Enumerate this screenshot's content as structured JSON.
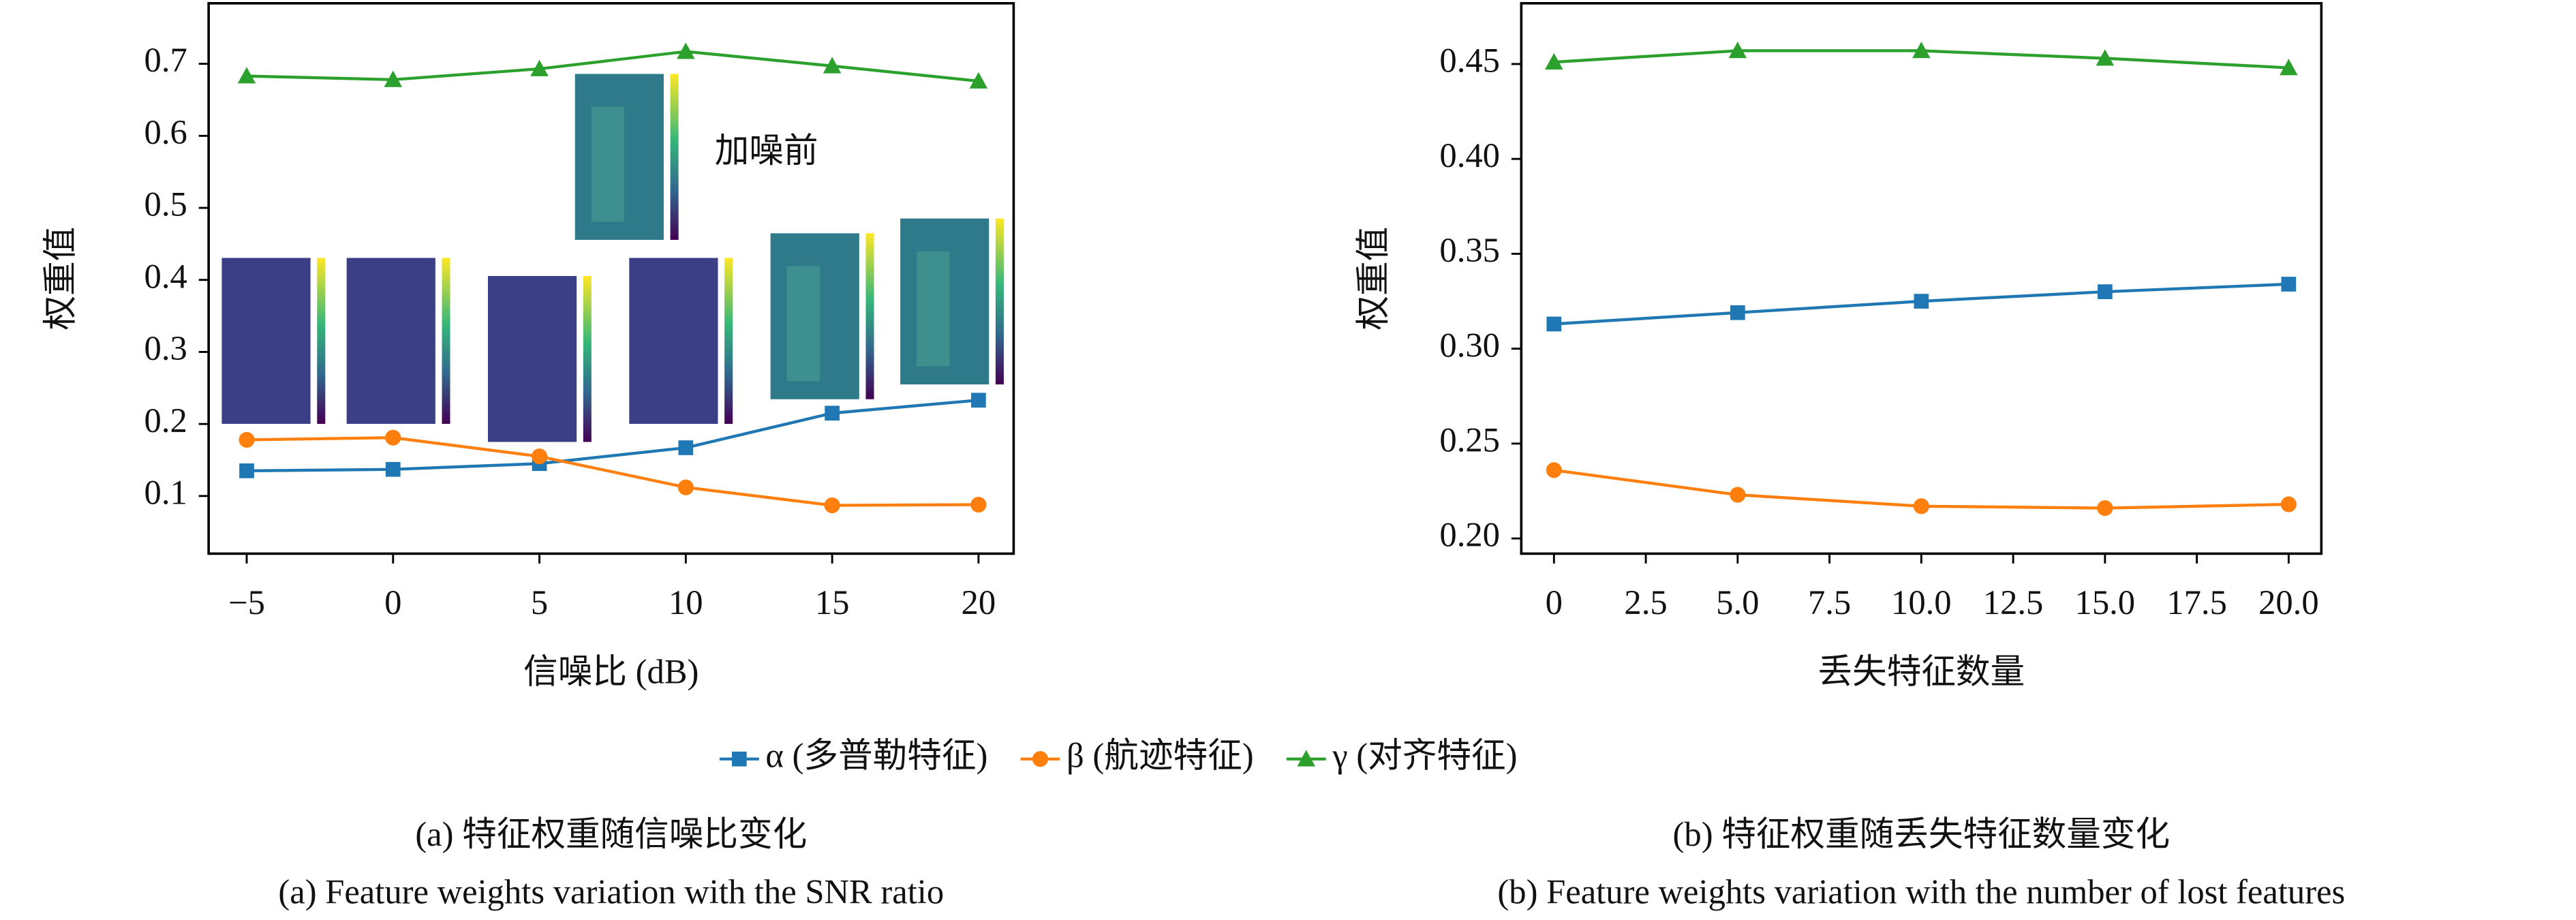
{
  "chart_data": [
    {
      "type": "line",
      "annotation": "加噪前",
      "x_label": "信噪比 (dB)",
      "y_label": "权重值",
      "caption": "(a) 特征权重随信噪比变化",
      "caption_en": "(a) Feature weights variation with the SNR ratio",
      "x": [
        -5,
        0,
        5,
        10,
        15,
        20
      ],
      "xlim": [
        -6.3,
        21.2
      ],
      "xticks": [
        -5,
        0,
        5,
        10,
        15,
        20
      ],
      "ylim": [
        0.02,
        0.784
      ],
      "yticks": [
        0.1,
        0.2,
        0.3,
        0.4,
        0.5,
        0.6,
        0.7
      ],
      "series": [
        {
          "name": "α (多普勒特征)",
          "color": "#1f77b4",
          "marker": "square",
          "values": [
            0.135,
            0.137,
            0.145,
            0.167,
            0.215,
            0.233
          ]
        },
        {
          "name": "β (航迹特征)",
          "color": "#ff7f0e",
          "marker": "circle",
          "values": [
            0.178,
            0.181,
            0.155,
            0.112,
            0.087,
            0.088
          ]
        },
        {
          "name": "γ (对齐特征)",
          "color": "#2ca02c",
          "marker": "triangle",
          "values": [
            0.683,
            0.678,
            0.693,
            0.717,
            0.697,
            0.676
          ]
        }
      ]
    },
    {
      "type": "line",
      "x_label": "丢失特征数量",
      "y_label": "权重值",
      "caption": "(b) 特征权重随丢失特征数量变化",
      "caption_en": "(b) Feature weights variation with the number of lost features",
      "x": [
        0,
        5,
        10,
        15,
        20
      ],
      "xlim": [
        -0.89,
        20.89
      ],
      "xticks": [
        0,
        2.5,
        {
          "value": 5,
          "label": "5.0"
        },
        7.5,
        {
          "value": 10,
          "label": "10.0"
        },
        12.5,
        {
          "value": 15,
          "label": "15.0"
        },
        17.5,
        {
          "value": 20,
          "label": "20.0"
        }
      ],
      "ylim": [
        0.192,
        0.482
      ],
      "yticks": [
        {
          "value": 0.2,
          "label": "0.20"
        },
        0.25,
        {
          "value": 0.3,
          "label": "0.30"
        },
        0.35,
        {
          "value": 0.4,
          "label": "0.40"
        },
        0.45
      ],
      "series": [
        {
          "color": "#1f77b4",
          "marker": "square",
          "values": [
            0.313,
            0.319,
            0.325,
            0.33,
            0.334
          ]
        },
        {
          "color": "#ff7f0e",
          "marker": "circle",
          "values": [
            0.236,
            0.223,
            0.217,
            0.216,
            0.218
          ]
        },
        {
          "color": "#2ca02c",
          "marker": "triangle",
          "values": [
            0.451,
            0.457,
            0.457,
            0.453,
            0.448
          ]
        }
      ]
    }
  ]
}
